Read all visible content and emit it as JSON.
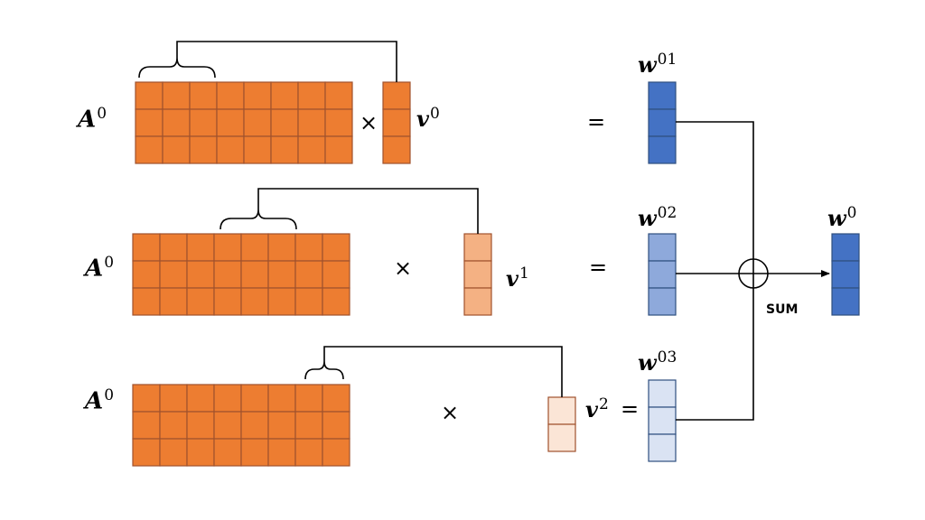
{
  "labels": {
    "A0_row1": {
      "base": "A",
      "sup": "0"
    },
    "A0_row2": {
      "base": "A",
      "sup": "0"
    },
    "A0_row3": {
      "base": "A",
      "sup": "0"
    },
    "v0": {
      "base": "v",
      "sup": "0"
    },
    "v1": {
      "base": "v",
      "sup": "1"
    },
    "v2": {
      "base": "v",
      "sup": "2"
    },
    "w01": {
      "base": "w",
      "sup": "01"
    },
    "w02": {
      "base": "w",
      "sup": "02"
    },
    "w03": {
      "base": "w",
      "sup": "03"
    },
    "w0": {
      "base": "w",
      "sup": "0"
    }
  },
  "operators": {
    "times": "×",
    "equals": "="
  },
  "sum_label": "SUM",
  "colors": {
    "matrix_fill": "#ED7D31",
    "matrix_stroke": "#A0522D",
    "v0_fill": "#ED7D31",
    "v1_fill": "#F4B183",
    "v2_fill": "#FBE5D6",
    "w01_fill": "#4472C4",
    "w02_fill": "#8EA9DB",
    "w03_fill": "#DAE3F3",
    "w0_fill": "#4472C4",
    "vector_blue_stroke": "#2F4F7F"
  }
}
